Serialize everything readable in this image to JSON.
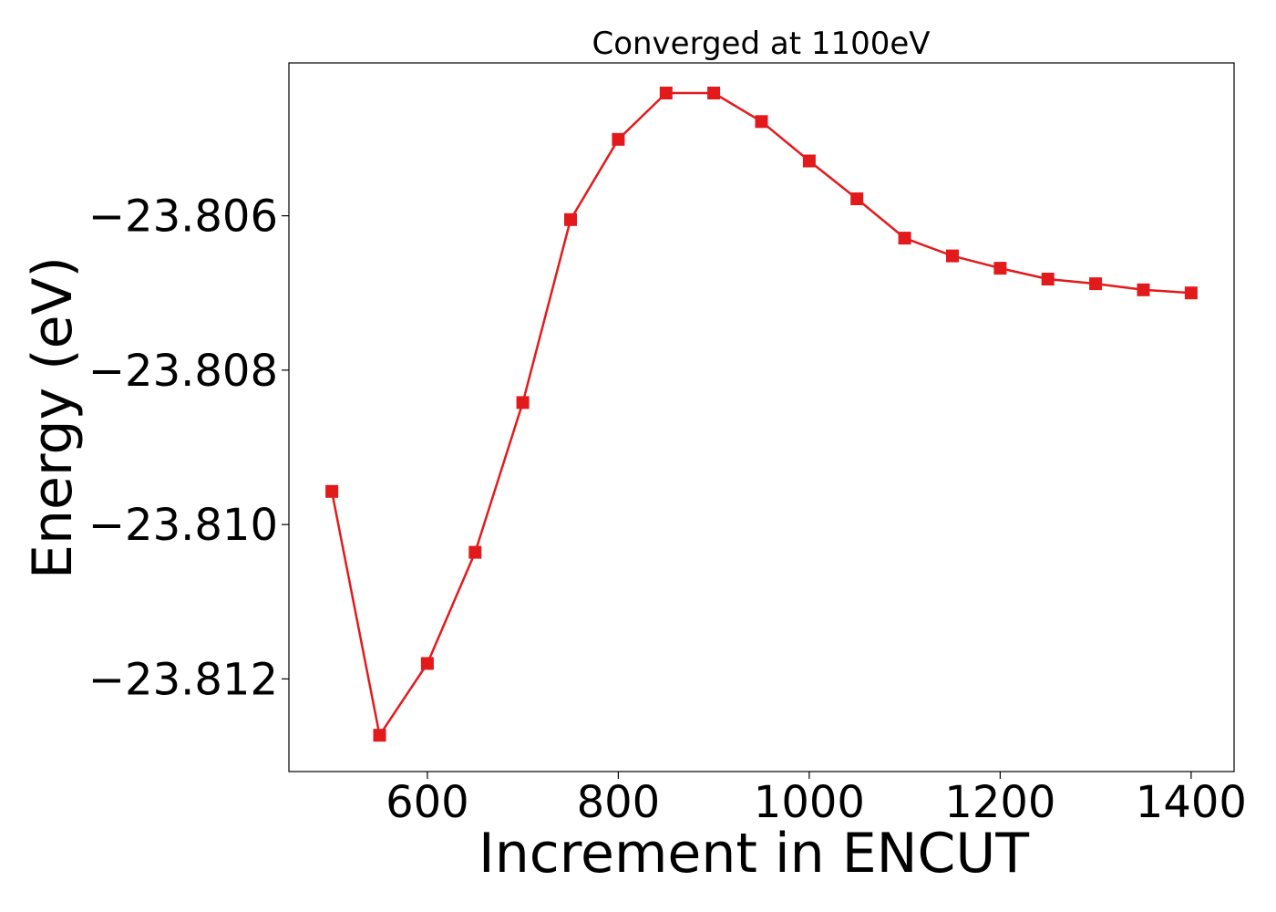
{
  "chart_data": {
    "type": "line",
    "title": "Converged at 1100eV",
    "xlabel": "Increment in ENCUT",
    "ylabel": "Energy (eV)",
    "xlim": [
      455,
      1445
    ],
    "ylim": [
      -23.8132,
      -23.80402
    ],
    "xticks": [
      600,
      800,
      1000,
      1200,
      1400
    ],
    "xtick_labels": [
      "600",
      "800",
      "1000",
      "1200",
      "1400"
    ],
    "yticks": [
      -23.806,
      -23.808,
      -23.81,
      -23.812
    ],
    "ytick_labels": [
      "−23.806",
      "−23.808",
      "−23.810",
      "−23.812"
    ],
    "grid": false,
    "legend": "none",
    "series": [
      {
        "color": "#e31a1c",
        "marker": "square",
        "x": [
          500,
          550,
          600,
          650,
          700,
          750,
          800,
          850,
          900,
          950,
          1000,
          1050,
          1100,
          1150,
          1200,
          1250,
          1300,
          1350,
          1400
        ],
        "y": [
          -23.80957,
          -23.81273,
          -23.8118,
          -23.81036,
          -23.80842,
          -23.80605,
          -23.80501,
          -23.80441,
          -23.80441,
          -23.80478,
          -23.80529,
          -23.80578,
          -23.80629,
          -23.80652,
          -23.80668,
          -23.80682,
          -23.80688,
          -23.80696,
          -23.807
        ]
      }
    ]
  }
}
